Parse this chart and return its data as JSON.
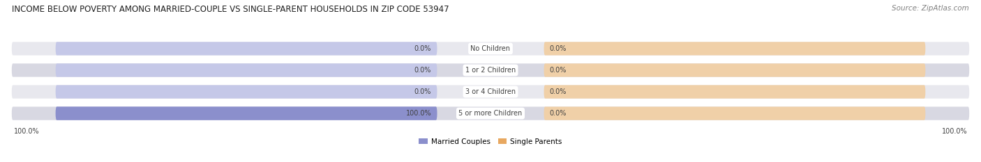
{
  "title": "INCOME BELOW POVERTY AMONG MARRIED-COUPLE VS SINGLE-PARENT HOUSEHOLDS IN ZIP CODE 53947",
  "source": "Source: ZipAtlas.com",
  "categories": [
    "No Children",
    "1 or 2 Children",
    "3 or 4 Children",
    "5 or more Children"
  ],
  "married_values": [
    0.0,
    0.0,
    0.0,
    100.0
  ],
  "single_values": [
    0.0,
    0.0,
    0.0,
    0.0
  ],
  "married_color": "#8b8fcc",
  "married_color_light": "#c5c8e8",
  "single_color": "#e8a860",
  "single_color_light": "#f0d0a8",
  "row_bg_color": "#e8e8ee",
  "row_bg_color2": "#d8d8e2",
  "label_color": "#404040",
  "title_color": "#202020",
  "source_color": "#808080",
  "max_val": 100.0,
  "legend_married": "Married Couples",
  "legend_single": "Single Parents",
  "background_color": "#ffffff",
  "axis_label_left": "100.0%",
  "axis_label_right": "100.0%"
}
